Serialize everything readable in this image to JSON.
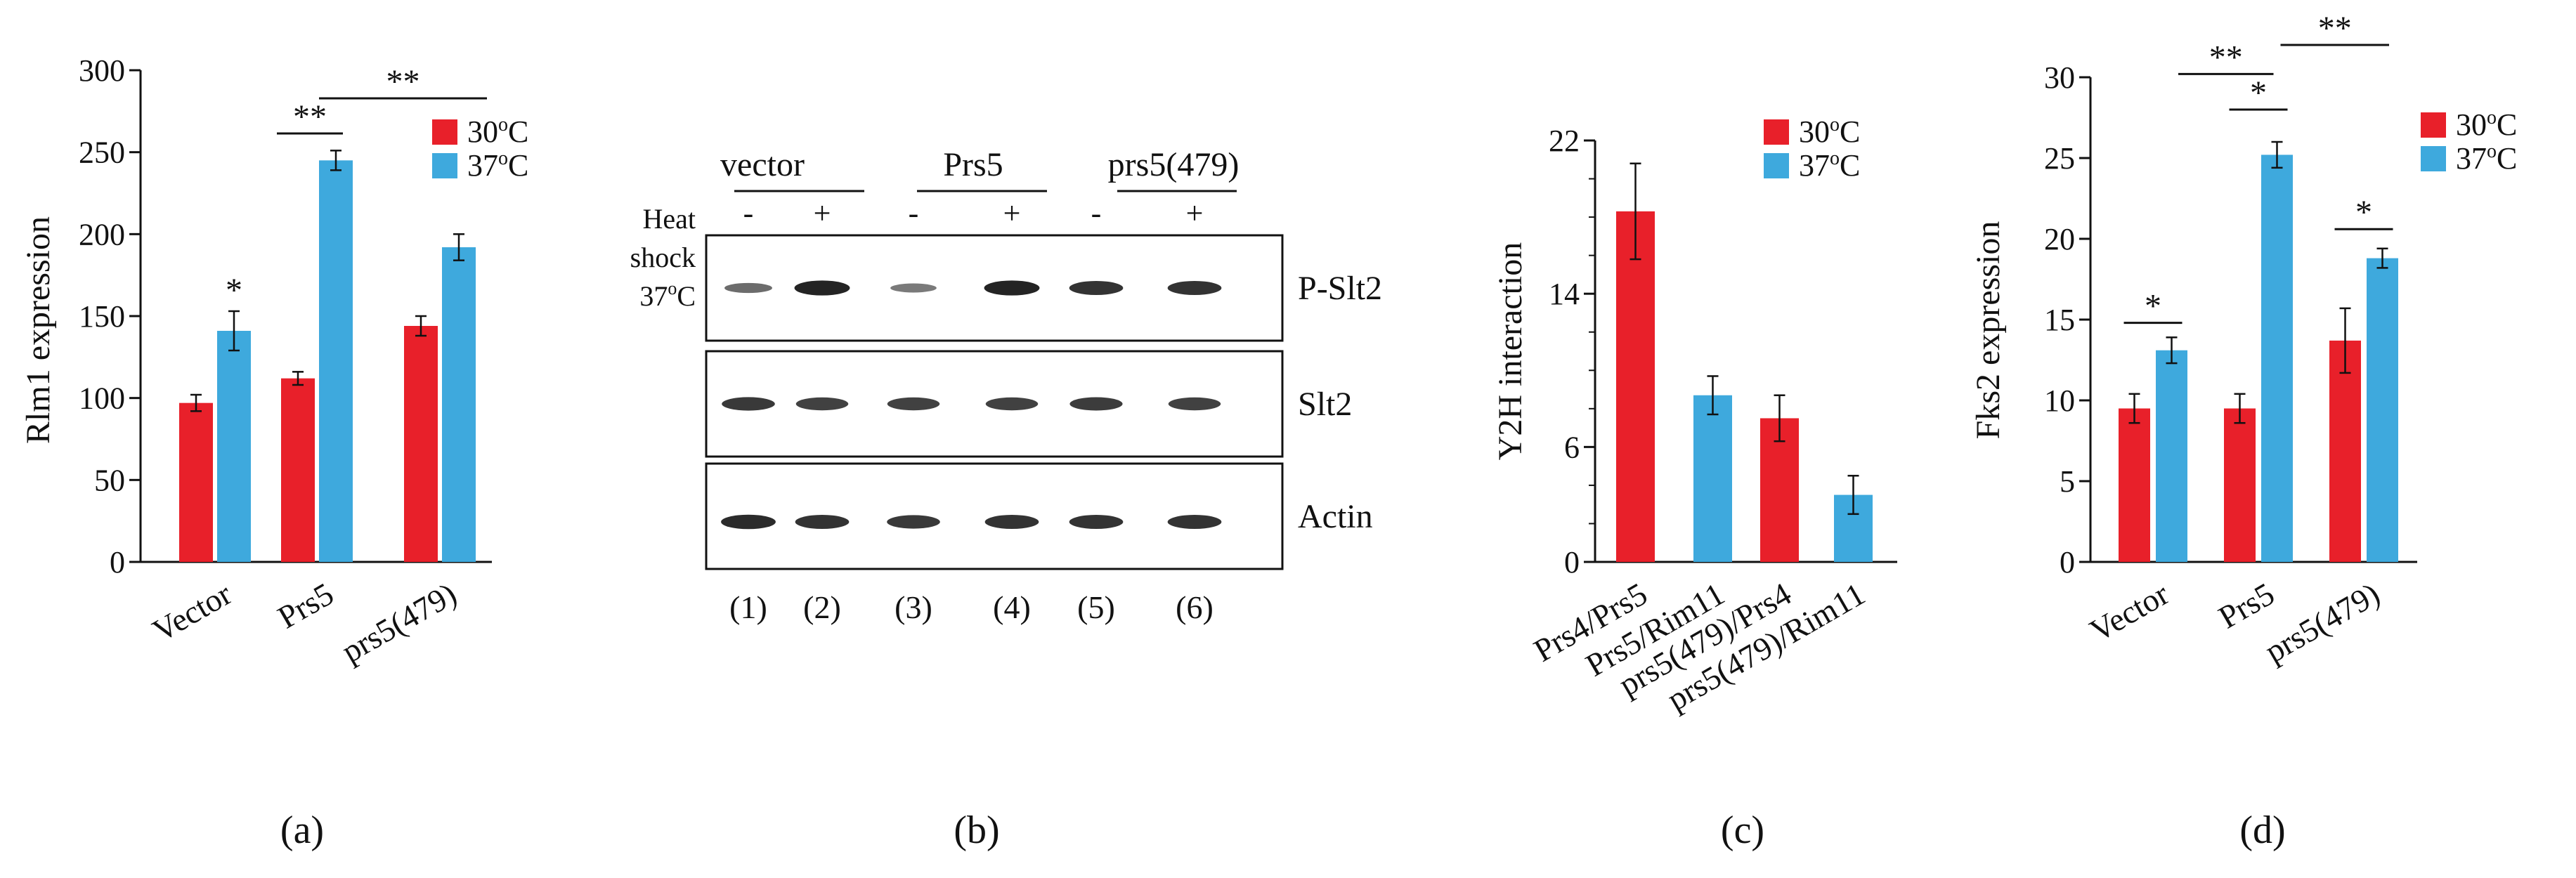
{
  "colors": {
    "c30": "#e8202a",
    "c37": "#3ea9dd",
    "axis": "#111111"
  },
  "panel_letters": [
    "(a)",
    "(b)",
    "(c)",
    "(d)"
  ],
  "chart_data": [
    {
      "type": "bar",
      "panel": "(a)",
      "ylabel": "Rlm1 expression",
      "ylim": [
        0,
        300
      ],
      "yticks": [
        "0",
        "50",
        "100",
        "150",
        "200",
        "250",
        "300"
      ],
      "categories": [
        "Vector",
        "Prs5",
        "prs5(479)"
      ],
      "legend": [
        {
          "label": "30°C",
          "sup": "o",
          "base": "30",
          "unit": "C"
        },
        {
          "label": "37°C",
          "sup": "o",
          "base": "37",
          "unit": "C"
        }
      ],
      "series": [
        {
          "name": "30°C",
          "values": [
            97,
            112,
            144
          ],
          "errors": [
            5,
            4,
            6
          ]
        },
        {
          "name": "37°C",
          "values": [
            141,
            245,
            192
          ],
          "errors": [
            12,
            6,
            8
          ]
        }
      ],
      "significance": [
        {
          "label": "*",
          "between": "Vector 37°C"
        },
        {
          "label": "**",
          "between": "Prs5 30°C vs 37°C"
        },
        {
          "label": "**",
          "between": "Prs5 37°C vs prs5(479) 37°C"
        }
      ]
    },
    {
      "type": "bar",
      "panel": "(c)",
      "ylabel": "Y2H interaction",
      "ylim": [
        0,
        22
      ],
      "yticks": [
        "0",
        "6",
        "14",
        "22"
      ],
      "categories": [
        "Prs4/Prs5",
        "Prs5/Rim11",
        "prs5(479)/Prs4",
        "prs5(479)/Rim11"
      ],
      "legend": [
        {
          "label": "30°C",
          "sup": "o",
          "base": "30",
          "unit": "C"
        },
        {
          "label": "37°C",
          "sup": "o",
          "base": "37",
          "unit": "C"
        }
      ],
      "series_of_bar": [
        "30",
        "37",
        "30",
        "37"
      ],
      "values": [
        18.3,
        8.7,
        7.5,
        3.5
      ],
      "errors": [
        2.5,
        1.0,
        1.2,
        1.0
      ]
    },
    {
      "type": "bar",
      "panel": "(d)",
      "ylabel": "Fks2  expression",
      "ylim": [
        0,
        30
      ],
      "yticks": [
        "0",
        "5",
        "10",
        "15",
        "20",
        "25",
        "30"
      ],
      "categories": [
        "Vector",
        "Prs5",
        "prs5(479)"
      ],
      "legend": [
        {
          "label": "30°C",
          "sup": "o",
          "base": "30",
          "unit": "C"
        },
        {
          "label": "37°C",
          "sup": "o",
          "base": "37",
          "unit": "C"
        }
      ],
      "series": [
        {
          "name": "30°C",
          "values": [
            9.5,
            9.5,
            13.7
          ],
          "errors": [
            0.9,
            0.9,
            2.0
          ]
        },
        {
          "name": "37°C",
          "values": [
            13.1,
            25.2,
            18.8
          ],
          "errors": [
            0.8,
            0.8,
            0.6
          ]
        }
      ],
      "significance": [
        {
          "label": "*",
          "between": "Vector 30°C vs 37°C"
        },
        {
          "label": "*",
          "between": "Prs5 30°C vs 37°C"
        },
        {
          "label": "*",
          "between": "prs5(479) 30°C vs 37°C"
        },
        {
          "label": "**",
          "between": "Vector vs Prs5 37°C"
        },
        {
          "label": "**",
          "between": "Prs5 vs prs5(479) 37°C"
        }
      ]
    }
  ],
  "blot": {
    "panel": "(b)",
    "groups": [
      "vector",
      "Prs5",
      "prs5(479)"
    ],
    "heat_label_line1": "Heat",
    "heat_label_line2": "shock",
    "heat_label_temp": "37°C",
    "heat_label_temp_base": "37",
    "heat_label_temp_sup": "o",
    "heat_label_temp_unit": "C",
    "heat_signs": [
      "-",
      "+",
      "-",
      "+",
      "-",
      "+"
    ],
    "rows": [
      "P-Slt2",
      "Slt2",
      "Actin"
    ],
    "lanes": [
      "(1)",
      "(2)",
      "(3)",
      "(4)",
      "(5)",
      "(6)"
    ],
    "band_intensity": {
      "P-Slt2": [
        0.45,
        0.95,
        0.35,
        0.95,
        0.85,
        0.85
      ],
      "Slt2": [
        0.8,
        0.75,
        0.75,
        0.75,
        0.78,
        0.75
      ],
      "Actin": [
        0.9,
        0.85,
        0.8,
        0.85,
        0.85,
        0.85
      ]
    }
  }
}
